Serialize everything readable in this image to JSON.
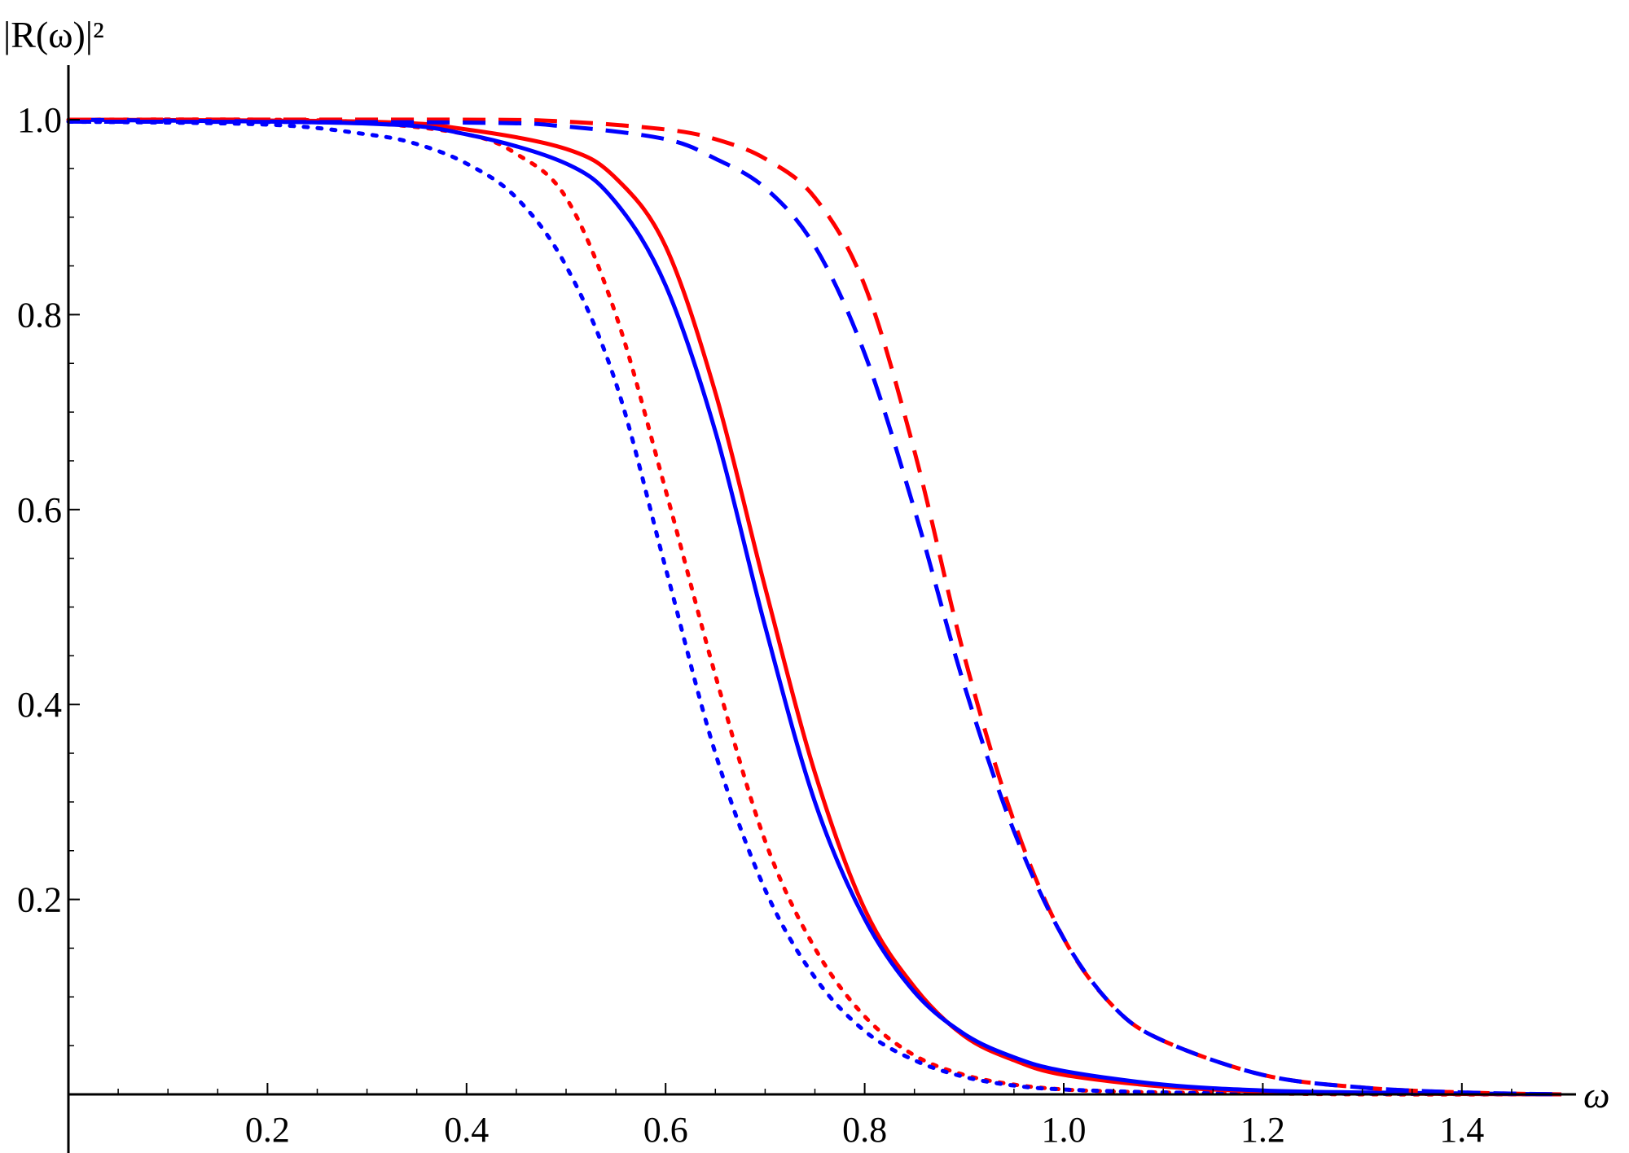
{
  "chart_data": {
    "type": "line",
    "xlabel": "ω",
    "ylabel": "|R(ω)|²",
    "xlim": [
      0,
      1.5
    ],
    "ylim": [
      0,
      1.0
    ],
    "x_ticks": [
      "0.2",
      "0.4",
      "0.6",
      "0.8",
      "1.0",
      "1.2",
      "1.4"
    ],
    "y_ticks": [
      "0.2",
      "0.4",
      "0.6",
      "0.8",
      "1.0"
    ],
    "grid": false,
    "series": [
      {
        "color": "#ff0000",
        "dash": "dotted",
        "x": [
          0,
          0.2,
          0.3,
          0.4,
          0.45,
          0.5,
          0.55,
          0.6,
          0.65,
          0.7,
          0.75,
          0.8,
          0.85,
          0.9,
          0.95,
          1.0,
          1.05,
          1.1,
          1.2,
          1.3,
          1.5
        ],
        "y": [
          1.0,
          1.0,
          0.997,
          0.985,
          0.965,
          0.92,
          0.8,
          0.62,
          0.43,
          0.26,
          0.15,
          0.08,
          0.04,
          0.02,
          0.01,
          0.005,
          0.003,
          0.002,
          0.001,
          0.0,
          0.0
        ]
      },
      {
        "color": "#0000ff",
        "dash": "dotted",
        "x": [
          0,
          0.2,
          0.3,
          0.35,
          0.4,
          0.45,
          0.5,
          0.55,
          0.6,
          0.65,
          0.7,
          0.75,
          0.8,
          0.85,
          0.9,
          0.95,
          1.0,
          1.1,
          1.2,
          1.5
        ],
        "y": [
          0.998,
          0.995,
          0.985,
          0.975,
          0.955,
          0.92,
          0.85,
          0.73,
          0.54,
          0.35,
          0.21,
          0.12,
          0.065,
          0.035,
          0.018,
          0.009,
          0.005,
          0.002,
          0.001,
          0.0
        ]
      },
      {
        "color": "#ff0000",
        "dash": "solid",
        "x": [
          0,
          0.3,
          0.4,
          0.5,
          0.55,
          0.6,
          0.65,
          0.7,
          0.75,
          0.8,
          0.85,
          0.9,
          0.95,
          1.0,
          1.1,
          1.2,
          1.3,
          1.5
        ],
        "y": [
          1.0,
          0.998,
          0.99,
          0.97,
          0.94,
          0.87,
          0.72,
          0.52,
          0.33,
          0.19,
          0.11,
          0.06,
          0.035,
          0.02,
          0.008,
          0.003,
          0.001,
          0.0
        ]
      },
      {
        "color": "#0000ff",
        "dash": "solid",
        "x": [
          0,
          0.3,
          0.4,
          0.5,
          0.55,
          0.6,
          0.65,
          0.7,
          0.75,
          0.8,
          0.85,
          0.9,
          0.95,
          1.0,
          1.1,
          1.2,
          1.3,
          1.5
        ],
        "y": [
          1.0,
          0.996,
          0.985,
          0.955,
          0.915,
          0.83,
          0.68,
          0.48,
          0.3,
          0.18,
          0.105,
          0.062,
          0.038,
          0.024,
          0.01,
          0.004,
          0.002,
          0.0
        ]
      },
      {
        "color": "#ff0000",
        "dash": "dashed",
        "x": [
          0,
          0.4,
          0.5,
          0.6,
          0.65,
          0.7,
          0.75,
          0.8,
          0.85,
          0.9,
          0.95,
          1.0,
          1.05,
          1.1,
          1.2,
          1.3,
          1.4,
          1.5
        ],
        "y": [
          1.0,
          1.0,
          0.998,
          0.99,
          0.98,
          0.96,
          0.92,
          0.83,
          0.66,
          0.45,
          0.28,
          0.16,
          0.09,
          0.055,
          0.02,
          0.007,
          0.002,
          0.0
        ]
      },
      {
        "color": "#0000ff",
        "dash": "dashed",
        "x": [
          0,
          0.4,
          0.5,
          0.6,
          0.65,
          0.7,
          0.75,
          0.8,
          0.85,
          0.9,
          0.95,
          1.0,
          1.05,
          1.1,
          1.2,
          1.3,
          1.4,
          1.5
        ],
        "y": [
          0.998,
          0.997,
          0.993,
          0.98,
          0.96,
          0.93,
          0.87,
          0.76,
          0.6,
          0.42,
          0.27,
          0.16,
          0.09,
          0.055,
          0.02,
          0.007,
          0.002,
          0.0
        ]
      }
    ]
  }
}
